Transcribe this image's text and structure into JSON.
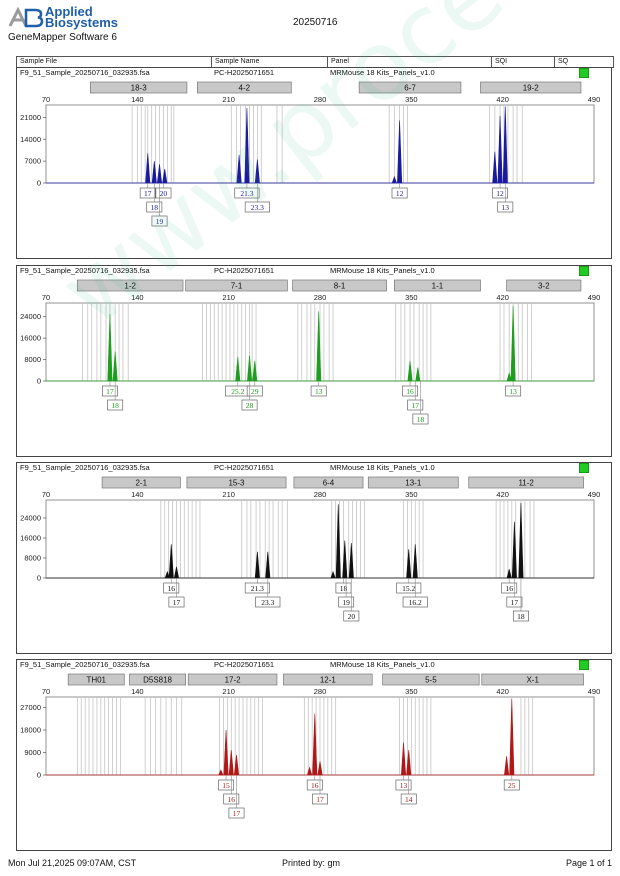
{
  "header": {
    "logo_mark": "AB",
    "logo_line1": "Applied",
    "logo_line2": "Biosystems",
    "software": "GeneMapper Software 6",
    "date": "20250716"
  },
  "columns": [
    "Sample File",
    "Sample Name",
    "Panel",
    "SQI",
    "SQ"
  ],
  "watermark": "www.procell.com.cn",
  "footer": {
    "left": "Mon Jul 21,2025 09:07AM, CST",
    "center": "Printed by: gm",
    "right": "Page 1 of 1"
  },
  "chart_data": [
    {
      "type": "electropherogram",
      "sample_file": "F9_51_Sample_20250716_032935.fsa",
      "sample_name": "PC-H2025071651",
      "panel": "MRMouse 18 Kits_Panels_v1.0",
      "color": "#1a1a9e",
      "xlim": [
        70,
        490
      ],
      "x_ticks": [
        70,
        140,
        210,
        280,
        350,
        420,
        490
      ],
      "ylim": [
        0,
        24000
      ],
      "y_ticks": [
        0,
        7000,
        14000,
        21000
      ],
      "markers": [
        {
          "label": "18-3",
          "x0": 104,
          "x1": 178
        },
        {
          "label": "4-2",
          "x0": 186,
          "x1": 258
        },
        {
          "label": "6-7",
          "x0": 310,
          "x1": 388
        },
        {
          "label": "19-2",
          "x0": 403,
          "x1": 480
        }
      ],
      "bins": [
        136,
        140,
        143,
        146,
        148,
        151,
        154,
        157,
        160,
        163,
        166,
        168,
        212,
        216,
        219,
        223,
        226,
        229,
        232,
        235,
        247,
        251,
        333,
        337,
        341,
        344,
        347,
        410,
        414,
        418,
        421,
        424,
        428,
        431,
        435
      ],
      "peaks": [
        {
          "x": 148,
          "y": 9500
        },
        {
          "x": 153,
          "y": 7000
        },
        {
          "x": 157,
          "y": 6000
        },
        {
          "x": 161,
          "y": 4500
        },
        {
          "x": 218,
          "y": 9000
        },
        {
          "x": 224,
          "y": 24000
        },
        {
          "x": 232,
          "y": 7500
        },
        {
          "x": 337,
          "y": 2000
        },
        {
          "x": 341,
          "y": 20000
        },
        {
          "x": 414,
          "y": 10000
        },
        {
          "x": 418,
          "y": 21500
        },
        {
          "x": 422,
          "y": 24500
        }
      ],
      "allele_labels": [
        {
          "x": 148,
          "row": 0,
          "text": "17"
        },
        {
          "x": 160,
          "row": 0,
          "text": "20"
        },
        {
          "x": 153,
          "row": 1,
          "text": "18"
        },
        {
          "x": 157,
          "row": 2,
          "text": "19"
        },
        {
          "x": 224,
          "row": 0,
          "text": "21.3"
        },
        {
          "x": 232,
          "row": 1,
          "text": "23.3"
        },
        {
          "x": 341,
          "row": 0,
          "text": "12"
        },
        {
          "x": 418,
          "row": 0,
          "text": "12"
        },
        {
          "x": 422,
          "row": 1,
          "text": "13"
        }
      ]
    },
    {
      "type": "electropherogram",
      "sample_file": "F9_51_Sample_20250716_032935.fsa",
      "sample_name": "PC-H2025071651",
      "panel": "MRMouse 18 Kits_Panels_v1.0",
      "color": "#1e9e1e",
      "xlim": [
        70,
        490
      ],
      "x_ticks": [
        70,
        140,
        210,
        280,
        350,
        420,
        490
      ],
      "ylim": [
        0,
        28000
      ],
      "y_ticks": [
        0,
        8000,
        16000,
        24000
      ],
      "markers": [
        {
          "label": "1-2",
          "x0": 94,
          "x1": 175
        },
        {
          "label": "7-1",
          "x0": 177,
          "x1": 255
        },
        {
          "label": "8-1",
          "x0": 259,
          "x1": 331
        },
        {
          "label": "1-1",
          "x0": 337,
          "x1": 403
        },
        {
          "label": "3-2",
          "x0": 423,
          "x1": 480
        }
      ],
      "bins": [
        98,
        102,
        105,
        109,
        112,
        116,
        119,
        123,
        126,
        129,
        133,
        190,
        193,
        196,
        199,
        202,
        205,
        208,
        211,
        214,
        217,
        220,
        223,
        226,
        228,
        231,
        263,
        266,
        270,
        273,
        276,
        280,
        283,
        287,
        290,
        338,
        342,
        345,
        349,
        352,
        356,
        359,
        362,
        365,
        418,
        421,
        425,
        428,
        432,
        435,
        439,
        442
      ],
      "peaks": [
        {
          "x": 119,
          "y": 25000
        },
        {
          "x": 123,
          "y": 11000
        },
        {
          "x": 217,
          "y": 9000
        },
        {
          "x": 226,
          "y": 9500
        },
        {
          "x": 230,
          "y": 7500
        },
        {
          "x": 279,
          "y": 26000
        },
        {
          "x": 349,
          "y": 7500
        },
        {
          "x": 355,
          "y": 5000
        },
        {
          "x": 425,
          "y": 3000
        },
        {
          "x": 428,
          "y": 28000
        }
      ],
      "allele_labels": [
        {
          "x": 119,
          "row": 0,
          "text": "17"
        },
        {
          "x": 123,
          "row": 1,
          "text": "18"
        },
        {
          "x": 217,
          "row": 0,
          "text": "25.2"
        },
        {
          "x": 230,
          "row": 0,
          "text": "29"
        },
        {
          "x": 226,
          "row": 1,
          "text": "28"
        },
        {
          "x": 279,
          "row": 0,
          "text": "13"
        },
        {
          "x": 349,
          "row": 0,
          "text": "16"
        },
        {
          "x": 353,
          "row": 1,
          "text": "17"
        },
        {
          "x": 357,
          "row": 2,
          "text": "18"
        },
        {
          "x": 428,
          "row": 0,
          "text": "13"
        }
      ]
    },
    {
      "type": "electropherogram",
      "sample_file": "F9_51_Sample_20250716_032935.fsa",
      "sample_name": "PC-H2025071651",
      "panel": "MRMouse 18 Kits_Panels_v1.0",
      "color": "#111111",
      "xlim": [
        70,
        490
      ],
      "x_ticks": [
        70,
        140,
        210,
        280,
        350,
        420,
        490
      ],
      "ylim": [
        0,
        30000
      ],
      "y_ticks": [
        0,
        8000,
        16000,
        24000
      ],
      "markers": [
        {
          "label": "2-1",
          "x0": 113,
          "x1": 173
        },
        {
          "label": "15-3",
          "x0": 178,
          "x1": 254
        },
        {
          "label": "6-4",
          "x0": 260,
          "x1": 313
        },
        {
          "label": "13-1",
          "x0": 317,
          "x1": 386
        },
        {
          "label": "11-2",
          "x0": 394,
          "x1": 482
        }
      ],
      "bins": [
        158,
        161,
        164,
        167,
        170,
        173,
        176,
        179,
        182,
        185,
        188,
        220,
        224,
        227,
        231,
        234,
        238,
        241,
        244,
        248,
        251,
        255,
        289,
        292,
        295,
        298,
        302,
        305,
        308,
        311,
        314,
        344,
        347,
        350,
        353,
        356,
        359,
        415,
        418,
        421,
        424,
        427,
        430,
        434,
        437,
        441,
        444
      ],
      "peaks": [
        {
          "x": 163,
          "y": 2500
        },
        {
          "x": 166,
          "y": 13500
        },
        {
          "x": 170,
          "y": 4500
        },
        {
          "x": 232,
          "y": 10500
        },
        {
          "x": 240,
          "y": 10500
        },
        {
          "x": 290,
          "y": 2500
        },
        {
          "x": 294,
          "y": 29500
        },
        {
          "x": 299,
          "y": 15000
        },
        {
          "x": 304,
          "y": 14000
        },
        {
          "x": 348,
          "y": 11500
        },
        {
          "x": 353,
          "y": 13500
        },
        {
          "x": 425,
          "y": 3500
        },
        {
          "x": 429,
          "y": 22500
        },
        {
          "x": 434,
          "y": 30000
        }
      ],
      "allele_labels": [
        {
          "x": 166,
          "row": 0,
          "text": "16"
        },
        {
          "x": 170,
          "row": 1,
          "text": "17"
        },
        {
          "x": 232,
          "row": 0,
          "text": "21.3"
        },
        {
          "x": 240,
          "row": 1,
          "text": "23.3"
        },
        {
          "x": 298,
          "row": 0,
          "text": "18"
        },
        {
          "x": 300,
          "row": 1,
          "text": "19"
        },
        {
          "x": 304,
          "row": 2,
          "text": "20"
        },
        {
          "x": 348,
          "row": 0,
          "text": "15.2"
        },
        {
          "x": 353,
          "row": 1,
          "text": "16.2"
        },
        {
          "x": 425,
          "row": 0,
          "text": "16"
        },
        {
          "x": 429,
          "row": 1,
          "text": "17"
        },
        {
          "x": 434,
          "row": 2,
          "text": "18"
        }
      ]
    },
    {
      "type": "electropherogram",
      "sample_file": "F9_51_Sample_20250716_032935.fsa",
      "sample_name": "PC-H2025071651",
      "panel": "MRMouse 18 Kits_Panels_v1.0",
      "color": "#b01818",
      "xlim": [
        70,
        490
      ],
      "x_ticks": [
        70,
        140,
        210,
        280,
        350,
        420,
        490
      ],
      "ylim": [
        0,
        30000
      ],
      "y_ticks": [
        0,
        9000,
        18000,
        27000
      ],
      "markers": [
        {
          "label": "TH01",
          "x0": 87,
          "x1": 130
        },
        {
          "label": "D5S818",
          "x0": 134,
          "x1": 177
        },
        {
          "label": "17-2",
          "x0": 179,
          "x1": 247
        },
        {
          "label": "12-1",
          "x0": 252,
          "x1": 320
        },
        {
          "label": "5-5",
          "x0": 328,
          "x1": 402
        },
        {
          "label": "X-1",
          "x0": 404,
          "x1": 482
        }
      ],
      "bins": [
        94,
        97,
        100,
        103,
        106,
        109,
        112,
        115,
        118,
        121,
        124,
        127,
        146,
        150,
        154,
        158,
        162,
        166,
        170,
        174,
        203,
        206,
        209,
        212,
        215,
        218,
        221,
        224,
        227,
        230,
        233,
        236,
        268,
        271,
        274,
        277,
        280,
        283,
        286,
        289,
        292,
        341,
        344,
        347,
        350,
        353,
        356,
        359,
        362,
        365,
        434,
        437,
        440,
        443
      ],
      "peaks": [
        {
          "x": 204,
          "y": 2000
        },
        {
          "x": 208,
          "y": 18000
        },
        {
          "x": 212,
          "y": 10000
        },
        {
          "x": 216,
          "y": 8000
        },
        {
          "x": 272,
          "y": 3000
        },
        {
          "x": 276,
          "y": 24500
        },
        {
          "x": 280,
          "y": 5500
        },
        {
          "x": 344,
          "y": 13000
        },
        {
          "x": 348,
          "y": 10000
        },
        {
          "x": 423,
          "y": 7500
        },
        {
          "x": 427,
          "y": 31000
        }
      ],
      "allele_labels": [
        {
          "x": 208,
          "row": 0,
          "text": "15"
        },
        {
          "x": 212,
          "row": 1,
          "text": "16"
        },
        {
          "x": 216,
          "row": 2,
          "text": "17"
        },
        {
          "x": 276,
          "row": 0,
          "text": "16"
        },
        {
          "x": 280,
          "row": 1,
          "text": "17"
        },
        {
          "x": 344,
          "row": 0,
          "text": "13"
        },
        {
          "x": 348,
          "row": 1,
          "text": "14"
        },
        {
          "x": 427,
          "row": 0,
          "text": "25"
        }
      ]
    }
  ]
}
